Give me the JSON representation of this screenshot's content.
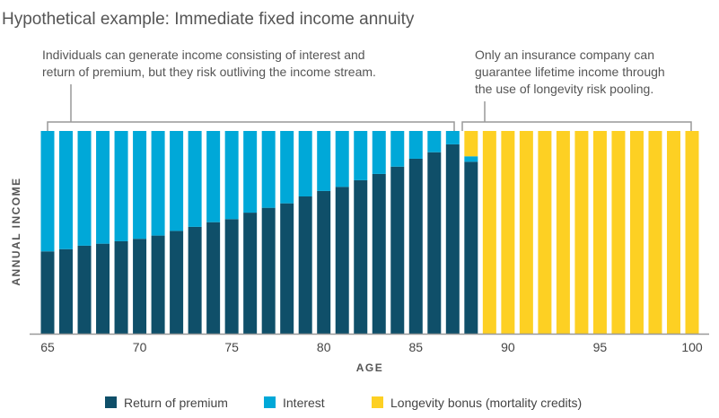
{
  "chart_data": {
    "type": "bar",
    "stacked": true,
    "title": "Hypothetical example: Immediate fixed income annuity",
    "xlabel": "AGE",
    "ylabel": "ANNUAL INCOME",
    "ylim": [
      0,
      100
    ],
    "x": [
      65,
      66,
      67,
      68,
      69,
      70,
      71,
      72,
      73,
      74,
      75,
      76,
      77,
      78,
      79,
      80,
      81,
      82,
      83,
      84,
      85,
      86,
      87,
      88,
      89,
      90,
      91,
      92,
      93,
      94,
      95,
      96,
      97,
      98,
      99,
      100
    ],
    "xticks": [
      "65",
      "70",
      "75",
      "80",
      "85",
      "90",
      "95",
      "100"
    ],
    "series": [
      {
        "name": "Return of premium",
        "color": "#0f4f69",
        "values": [
          40.6,
          41.7,
          43.4,
          44.4,
          45.6,
          46.8,
          48.4,
          50.7,
          52.7,
          55.0,
          56.5,
          59.7,
          62.1,
          64.3,
          67.7,
          70.4,
          72.4,
          75.7,
          78.8,
          82.4,
          86.3,
          89.5,
          93.4,
          84.8,
          0,
          0,
          0,
          0,
          0,
          0,
          0,
          0,
          0,
          0,
          0,
          0
        ]
      },
      {
        "name": "Interest",
        "color": "#00a8d8",
        "values": [
          59.4,
          58.3,
          56.6,
          55.6,
          54.4,
          53.2,
          51.6,
          49.3,
          47.3,
          45.0,
          43.5,
          40.3,
          37.9,
          35.7,
          32.3,
          29.6,
          27.6,
          24.3,
          21.2,
          17.6,
          13.7,
          10.5,
          6.6,
          2.7,
          0,
          0,
          0,
          0,
          0,
          0,
          0,
          0,
          0,
          0,
          0,
          0
        ]
      },
      {
        "name": "Longevity bonus (mortality credits)",
        "color": "#fdd023",
        "values": [
          0,
          0,
          0,
          0,
          0,
          0,
          0,
          0,
          0,
          0,
          0,
          0,
          0,
          0,
          0,
          0,
          0,
          0,
          0,
          0,
          0,
          0,
          0,
          12.5,
          100,
          100,
          100,
          100,
          100,
          100,
          100,
          100,
          100,
          100,
          100,
          100
        ]
      }
    ],
    "annotations": [
      {
        "lines": [
          "Individuals can generate income consisting of interest and",
          "return of premium, but they risk outliving the income stream."
        ],
        "span": [
          65,
          87
        ]
      },
      {
        "lines": [
          "Only an insurance company can",
          "guarantee lifetime income through",
          "the use of longevity risk pooling."
        ],
        "span": [
          88,
          100
        ]
      }
    ],
    "legend_position": "bottom"
  }
}
